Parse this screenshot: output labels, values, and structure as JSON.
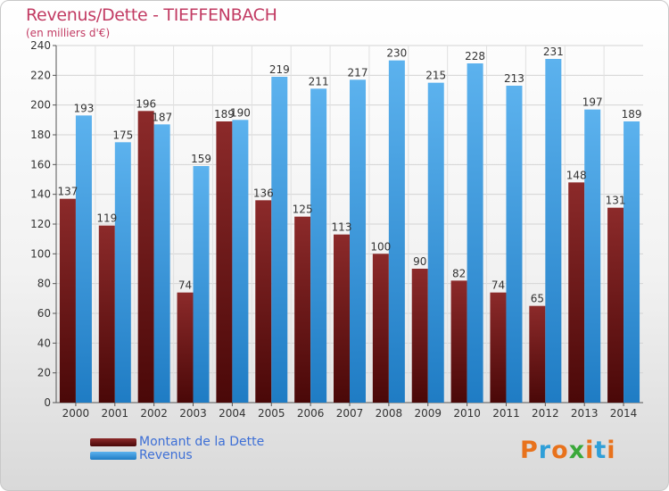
{
  "header": {
    "title": "Revenus/Dette - TIEFFENBACH",
    "subtitle": "(en milliers d'€)"
  },
  "legend": {
    "items": [
      {
        "label": "Montant de la Dette",
        "color": "#7a1c1c"
      },
      {
        "label": "Revenus",
        "color": "#3a97dc"
      }
    ]
  },
  "logo": {
    "text": "Proxiti",
    "colors": [
      "#e8721c",
      "#2f9fd8",
      "#e8721c",
      "#3aa83a",
      "#e8721c",
      "#2f9fd8",
      "#e8721c"
    ]
  },
  "chart_data": {
    "type": "bar",
    "title": "Revenus/Dette - TIEFFENBACH",
    "subtitle": "(en milliers d'€)",
    "categories": [
      "2000",
      "2001",
      "2002",
      "2003",
      "2004",
      "2005",
      "2006",
      "2007",
      "2008",
      "2009",
      "2010",
      "2011",
      "2012",
      "2013",
      "2014"
    ],
    "series": [
      {
        "name": "Montant de la Dette",
        "color": "#7a1c1c",
        "values": [
          137,
          119,
          196,
          74,
          189,
          136,
          125,
          113,
          100,
          90,
          82,
          74,
          65,
          148,
          131
        ],
        "labels": [
          "137",
          "119",
          "196",
          "74",
          "189",
          "136",
          "125",
          "113",
          "100",
          "90",
          "82",
          "74",
          "65",
          "148",
          "131"
        ]
      },
      {
        "name": "Revenus",
        "color": "#3a97dc",
        "values": [
          193,
          175,
          187,
          159,
          190,
          219,
          211,
          217,
          230,
          215,
          228,
          213,
          231,
          197,
          189
        ],
        "labels": [
          "193",
          "175",
          "187",
          "159",
          "190",
          "219",
          "211",
          "217",
          "230",
          "215",
          "228",
          "213",
          "231",
          "197",
          "189"
        ]
      }
    ],
    "ylim": [
      0,
      240
    ],
    "yticks": [
      "0",
      "20",
      "40",
      "60",
      "80",
      "100",
      "120",
      "140",
      "160",
      "180",
      "200",
      "220",
      "240"
    ],
    "ytick_values": [
      0,
      20,
      40,
      60,
      80,
      100,
      120,
      140,
      160,
      180,
      200,
      220,
      240
    ],
    "grid": true,
    "legend_position": "bottom-left"
  }
}
